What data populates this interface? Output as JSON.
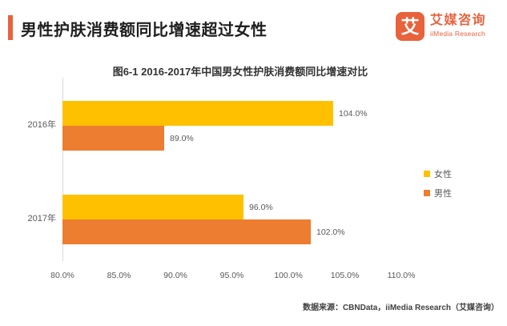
{
  "header": {
    "title": "男性护肤消费额同比增速超过女性"
  },
  "logo": {
    "glyph": "艾",
    "name_cn": "艾媒咨询",
    "name_en": "iiMedia Research"
  },
  "chart_data": {
    "type": "bar",
    "orientation": "horizontal",
    "title": "图6-1 2016-2017年中国男女性护肤消费额同比增速对比",
    "categories": [
      "2016年",
      "2017年"
    ],
    "series": [
      {
        "name": "女性",
        "color": "#FFC000",
        "values": [
          104.0,
          96.0
        ],
        "labels": [
          "104.0%",
          "96.0%"
        ]
      },
      {
        "name": "男性",
        "color": "#ED7D31",
        "values": [
          89.0,
          102.0
        ],
        "labels": [
          "89.0%",
          "102.0%"
        ]
      }
    ],
    "xlabel": "",
    "ylabel": "",
    "xlim": [
      80,
      110
    ],
    "x_ticks": [
      "80.0%",
      "85.0%",
      "90.0%",
      "95.0%",
      "100.0%",
      "105.0%",
      "110.0%"
    ],
    "grid": false,
    "legend_position": "right"
  },
  "source": "数据来源：CBNData，iiMedia Research（艾媒咨询）",
  "colors": {
    "accent": "#E8623C",
    "female_bar": "#FFC000",
    "male_bar": "#ED7D31",
    "axis": "#D9D9D9",
    "label_text": "#595959"
  }
}
